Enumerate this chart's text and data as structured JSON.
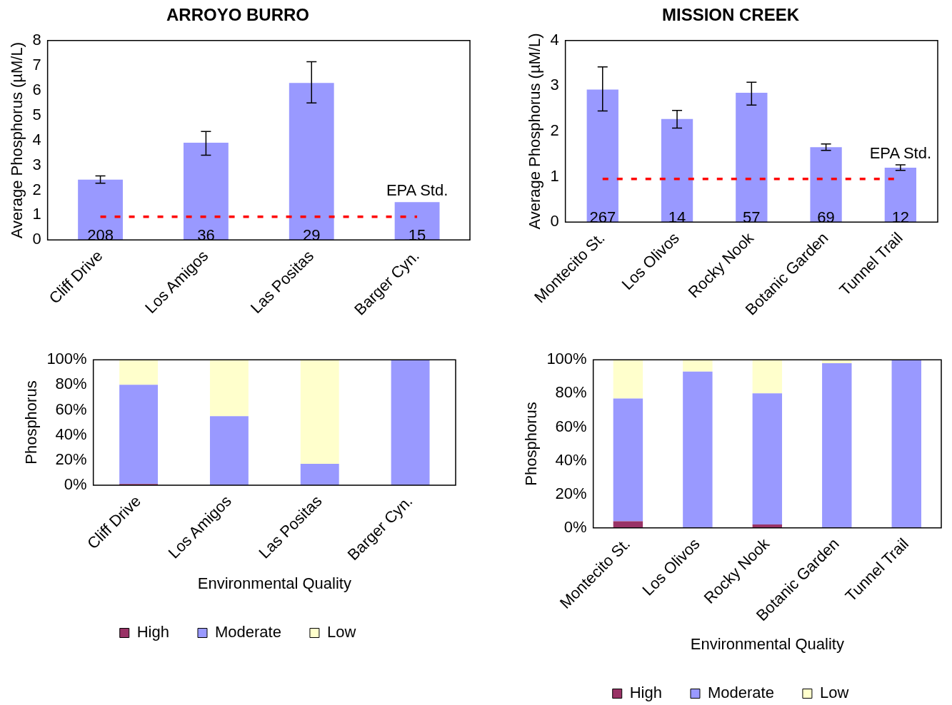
{
  "chart_data": [
    {
      "type": "bar",
      "title": "ARROYO BURRO",
      "ylabel": "Average Phosphorus (µM/L)",
      "categories": [
        "Cliff Drive",
        "Los Amigos",
        "Las Positas",
        "Barger Cyn."
      ],
      "values": [
        2.42,
        3.9,
        6.3,
        1.52
      ],
      "errors": [
        [
          2.28,
          2.57
        ],
        [
          3.4,
          4.35
        ],
        [
          5.5,
          7.15
        ],
        null
      ],
      "color": "#9999ff",
      "ylim": [
        0,
        8
      ],
      "yticks": [
        0,
        1,
        2,
        3,
        4,
        5,
        6,
        7,
        8
      ],
      "grid": false,
      "legend": false,
      "ref_lines": [
        {
          "axis": "y",
          "value": 0.93,
          "label": "EPA Std.",
          "color": "#ff0000",
          "line_style": "dashed"
        }
      ],
      "annotations": [
        {
          "text": "208",
          "x": "Cliff Drive",
          "y": 0
        },
        {
          "text": "36",
          "x": "Los Amigos",
          "y": 0
        },
        {
          "text": "29",
          "x": "Las Positas",
          "y": 0
        },
        {
          "text": "15",
          "x": "Barger Cyn.",
          "y": 0
        }
      ]
    },
    {
      "type": "bar",
      "title": "MISSION CREEK",
      "ylabel": "Average Phosphorus (µM/L)",
      "categories": [
        "Montecito St.",
        "Los Olivos",
        "Rocky Nook",
        "Botanic Garden",
        "Tunnel Trail"
      ],
      "values": [
        2.92,
        2.27,
        2.85,
        1.65,
        1.2
      ],
      "errors": [
        [
          2.45,
          3.42
        ],
        [
          2.07,
          2.46
        ],
        [
          2.58,
          3.08
        ],
        [
          1.58,
          1.72
        ],
        [
          1.14,
          1.26
        ]
      ],
      "color": "#9999ff",
      "ylim": [
        0,
        4
      ],
      "yticks": [
        0,
        1,
        2,
        3,
        4
      ],
      "grid": false,
      "legend": false,
      "ref_lines": [
        {
          "axis": "y",
          "value": 0.95,
          "label": "EPA Std.",
          "color": "#ff0000",
          "line_style": "dashed"
        }
      ],
      "annotations": [
        {
          "text": "267",
          "x": "Montecito St.",
          "y": 0
        },
        {
          "text": "14",
          "x": "Los Olivos",
          "y": 0
        },
        {
          "text": "57",
          "x": "Rocky Nook",
          "y": 0
        },
        {
          "text": "69",
          "x": "Botanic Garden",
          "y": 0
        },
        {
          "text": "12",
          "x": "Tunnel Trail",
          "y": 0
        }
      ]
    },
    {
      "type": "bar",
      "stacked": true,
      "ylabel": "Phosphorus",
      "xlabel": "Environmental Quality",
      "categories": [
        "Cliff Drive",
        "Los Amigos",
        "Las Positas",
        "Barger Cyn."
      ],
      "ylim": [
        0,
        100
      ],
      "yticks": [
        {
          "value": 0,
          "label": "0%"
        },
        {
          "value": 20,
          "label": "20%"
        },
        {
          "value": 40,
          "label": "40%"
        },
        {
          "value": 60,
          "label": "60%"
        },
        {
          "value": 80,
          "label": "80%"
        },
        {
          "value": 100,
          "label": "100%"
        }
      ],
      "grid": false,
      "legend": "bottom",
      "series": [
        {
          "name": "High",
          "color": "#993366",
          "values": [
            1,
            0,
            0,
            0
          ]
        },
        {
          "name": "Moderate",
          "color": "#9999ff",
          "values": [
            79,
            55,
            17,
            100
          ]
        },
        {
          "name": "Low",
          "color": "#ffffcc",
          "values": [
            20,
            45,
            83,
            0
          ]
        }
      ]
    },
    {
      "type": "bar",
      "stacked": true,
      "ylabel": "Phosphorus",
      "xlabel": "Environmental Quality",
      "categories": [
        "Montecito St.",
        "Los Olivos",
        "Rocky Nook",
        "Botanic Garden",
        "Tunnel Trail"
      ],
      "ylim": [
        0,
        100
      ],
      "yticks": [
        {
          "value": 0,
          "label": "0%"
        },
        {
          "value": 20,
          "label": "20%"
        },
        {
          "value": 40,
          "label": "40%"
        },
        {
          "value": 60,
          "label": "60%"
        },
        {
          "value": 80,
          "label": "80%"
        },
        {
          "value": 100,
          "label": "100%"
        }
      ],
      "grid": false,
      "legend": "bottom",
      "series": [
        {
          "name": "High",
          "color": "#993366",
          "values": [
            4,
            0,
            2,
            0,
            0
          ]
        },
        {
          "name": "Moderate",
          "color": "#9999ff",
          "values": [
            73,
            93,
            78,
            98,
            100
          ]
        },
        {
          "name": "Low",
          "color": "#ffffcc",
          "values": [
            23,
            7,
            20,
            2,
            0
          ]
        }
      ]
    }
  ]
}
